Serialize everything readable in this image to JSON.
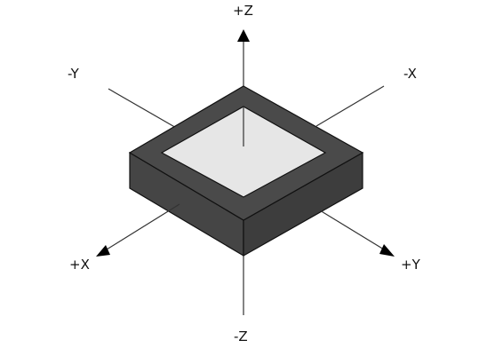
{
  "axes": {
    "pos_z": "+Z",
    "neg_z": "-Z",
    "pos_x": "+X",
    "neg_x": "-X",
    "pos_y": "+Y",
    "neg_y": "-Y"
  },
  "colors": {
    "axis": "#333333",
    "body_top": "#4a4a4a",
    "body_side": "#454545",
    "body_outline": "#111111",
    "window": "#e6e6e6"
  }
}
